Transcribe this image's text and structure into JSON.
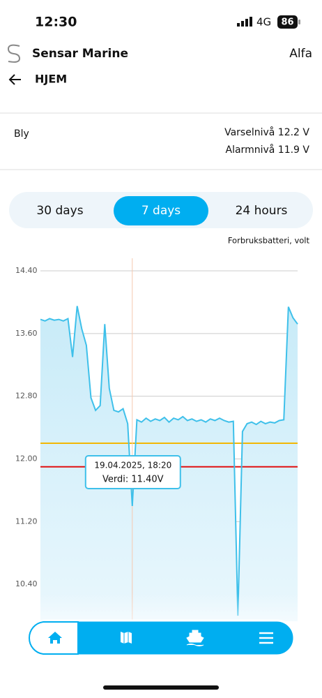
{
  "status": {
    "time": "12:30",
    "network": "4G",
    "battery": "86"
  },
  "header": {
    "brand": "Sensar Marine",
    "vessel": "Alfa",
    "back": "HJEM"
  },
  "info": {
    "type": "Bly",
    "warning": "Varselnivå 12.2 V",
    "alarm": "Alarmnivå 11.9 V"
  },
  "tabs": {
    "items": [
      "30 days",
      "7 days",
      "24 hours"
    ],
    "active": 1
  },
  "chart_data": {
    "type": "line",
    "ylabel": "Forbruksbatteri, volt",
    "color": "#3ec0ea",
    "values": [
      13.78,
      13.76,
      13.79,
      13.77,
      13.78,
      13.76,
      13.79,
      13.3,
      13.95,
      13.66,
      13.45,
      12.78,
      12.62,
      12.68,
      13.72,
      12.9,
      12.62,
      12.6,
      12.64,
      12.45,
      11.4,
      12.5,
      12.47,
      12.52,
      12.48,
      12.51,
      12.49,
      12.53,
      12.47,
      12.52,
      12.5,
      12.54,
      12.49,
      12.51,
      12.48,
      12.5,
      12.47,
      12.51,
      12.49,
      12.52,
      12.49,
      12.47,
      12.48,
      10.0,
      12.35,
      12.45,
      12.47,
      12.44,
      12.48,
      12.45,
      12.47,
      12.46,
      12.49,
      12.5,
      13.94,
      13.8,
      13.72
    ],
    "ylim": [
      9.93,
      14.56
    ],
    "yticks": [
      {
        "value": 14.4,
        "label": "14.40"
      },
      {
        "value": 13.6,
        "label": "13.60"
      },
      {
        "value": 12.8,
        "label": "12.80"
      },
      {
        "value": 12.0,
        "label": "12.00"
      },
      {
        "value": 11.2,
        "label": "11.20"
      },
      {
        "value": 10.4,
        "label": "10.40"
      }
    ],
    "grid": true,
    "thresholds": [
      {
        "value": 12.2,
        "color": "#f2b705"
      },
      {
        "value": 11.9,
        "color": "#e01010"
      }
    ],
    "tooltip": {
      "point": 20,
      "date": "19.04.2025, 18:20",
      "text": "Verdi: 11.40V"
    }
  }
}
